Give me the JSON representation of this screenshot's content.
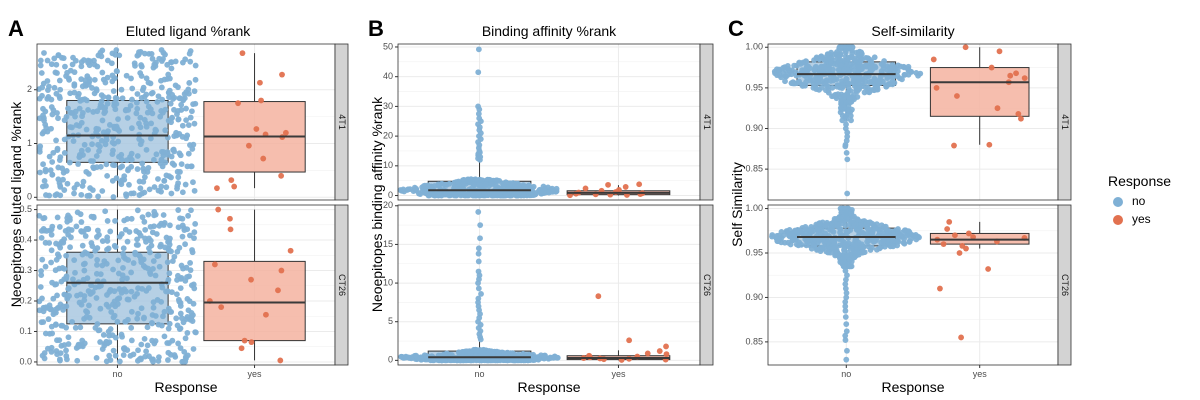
{
  "panels": [
    {
      "letter": "A",
      "title": "Eluted ligand %rank",
      "ylabel": "Neoepitopes eluted ligand %rank",
      "xlabel": "Response",
      "categories": [
        "no",
        "yes"
      ],
      "facets": [
        {
          "label": "4T1",
          "ylim": [
            -0.05,
            2.85
          ],
          "ticks": [
            0,
            1,
            2
          ],
          "boxes": [
            {
              "group": "no",
              "q1": 0.65,
              "median": 1.15,
              "q3": 1.8,
              "whisker_low": 0.0,
              "whisker_high": 2.75,
              "n_points": 500,
              "spread": "uniform"
            },
            {
              "group": "yes",
              "q1": 0.47,
              "median": 1.13,
              "q3": 1.78,
              "whisker_low": 0.17,
              "whisker_high": 2.68,
              "points": [
                2.68,
                2.28,
                2.13,
                1.8,
                1.75,
                1.27,
                1.2,
                1.17,
                1.12,
                0.96,
                0.72,
                0.4,
                0.32,
                0.2,
                0.17
              ]
            }
          ]
        },
        {
          "label": "CT26",
          "ylim": [
            -0.01,
            0.515
          ],
          "ticks": [
            0.0,
            0.1,
            0.2,
            0.3,
            0.4,
            0.5
          ],
          "tick_labels": [
            "0.0",
            "0.1",
            "0.2",
            "0.3",
            "0.4",
            "0.5"
          ],
          "boxes": [
            {
              "group": "no",
              "q1": 0.125,
              "median": 0.26,
              "q3": 0.36,
              "whisker_low": 0.0,
              "whisker_high": 0.5,
              "n_points": 500,
              "spread": "uniform"
            },
            {
              "group": "yes",
              "q1": 0.07,
              "median": 0.195,
              "q3": 0.33,
              "whisker_low": 0.005,
              "whisker_high": 0.5,
              "points": [
                0.5,
                0.47,
                0.435,
                0.365,
                0.32,
                0.3,
                0.27,
                0.235,
                0.2,
                0.18,
                0.155,
                0.07,
                0.065,
                0.045,
                0.005
              ]
            }
          ]
        }
      ]
    },
    {
      "letter": "B",
      "title": "Binding affinity %rank",
      "ylabel": "Neoepitopes binding affinity %rank",
      "xlabel": "Response",
      "categories": [
        "no",
        "yes"
      ],
      "facets": [
        {
          "label": "4T1",
          "ylim": [
            -1.5,
            51
          ],
          "ticks": [
            0,
            10,
            20,
            30,
            40,
            50
          ],
          "boxes": [
            {
              "group": "no",
              "q1": 0.5,
              "median": 1.8,
              "q3": 4.8,
              "whisker_low": 0.0,
              "whisker_high": 11.5,
              "n_points": 400,
              "spread": "skewed",
              "outliers": [
                49.2,
                41.5,
                30,
                29,
                27.5,
                26,
                25,
                24,
                23,
                22,
                21,
                20,
                19,
                18,
                17,
                16,
                15,
                14.5,
                14,
                13.5,
                13,
                12.5,
                12
              ]
            },
            {
              "group": "yes",
              "q1": 0.3,
              "median": 0.9,
              "q3": 1.6,
              "whisker_low": 0.0,
              "whisker_high": 3.5,
              "points": [
                3.8,
                3.6,
                2.9,
                2.4,
                1.9,
                1.6,
                1.2,
                1.0,
                0.8,
                0.6,
                0.5,
                0.4,
                0.3,
                0.2,
                0.1
              ]
            }
          ]
        },
        {
          "label": "CT26",
          "ylim": [
            -0.6,
            20.1
          ],
          "ticks": [
            0,
            5,
            10,
            15,
            20
          ],
          "boxes": [
            {
              "group": "no",
              "q1": 0.1,
              "median": 0.4,
              "q3": 1.2,
              "whisker_low": 0.0,
              "whisker_high": 2.5,
              "n_points": 500,
              "spread": "skewed",
              "outliers": [
                19.2,
                17.5,
                15.8,
                14.5,
                13.8,
                12.8,
                11.5,
                11,
                10.5,
                10,
                9.3,
                8.6,
                8,
                7.5,
                7,
                6.5,
                6,
                5.5,
                5,
                4.6,
                4.2,
                3.8,
                3.4,
                3.0,
                2.7
              ]
            },
            {
              "group": "yes",
              "q1": 0.1,
              "median": 0.3,
              "q3": 0.6,
              "whisker_low": 0.0,
              "whisker_high": 1.3,
              "points": [
                8.3,
                2.6,
                1.8,
                1.2,
                0.9,
                0.8,
                0.6,
                0.5,
                0.4,
                0.3,
                0.25,
                0.2,
                0.15,
                0.1,
                0.05
              ]
            }
          ]
        }
      ]
    },
    {
      "letter": "C",
      "title": "Self-similarity",
      "ylabel": "Self Similarity",
      "xlabel": "Response",
      "categories": [
        "no",
        "yes"
      ],
      "facets": [
        {
          "label": "4T1",
          "ylim": [
            0.812,
            1.004
          ],
          "ticks": [
            0.85,
            0.9,
            0.95,
            1.0
          ],
          "tick_labels": [
            "0.85",
            "0.90",
            "0.95",
            "1.00"
          ],
          "boxes": [
            {
              "group": "no",
              "q1": 0.953,
              "median": 0.967,
              "q3": 0.982,
              "whisker_low": 0.91,
              "whisker_high": 1.0,
              "n_points": 450,
              "spread": "normal",
              "outliers": [
                0.905,
                0.9,
                0.895,
                0.89,
                0.885,
                0.88,
                0.878,
                0.87,
                0.862,
                0.82
              ]
            },
            {
              "group": "yes",
              "q1": 0.915,
              "median": 0.957,
              "q3": 0.975,
              "whisker_low": 0.88,
              "whisker_high": 1.0,
              "points": [
                1.0,
                0.995,
                0.985,
                0.975,
                0.968,
                0.965,
                0.962,
                0.957,
                0.95,
                0.94,
                0.925,
                0.918,
                0.912,
                0.88,
                0.879
              ]
            }
          ]
        },
        {
          "label": "CT26",
          "ylim": [
            0.824,
            1.004
          ],
          "ticks": [
            0.85,
            0.9,
            0.95,
            1.0
          ],
          "tick_labels": [
            "0.85",
            "0.90",
            "0.95",
            "1.00"
          ],
          "boxes": [
            {
              "group": "no",
              "q1": 0.958,
              "median": 0.968,
              "q3": 0.978,
              "whisker_low": 0.935,
              "whisker_high": 1.0,
              "n_points": 500,
              "spread": "normal",
              "outliers": [
                0.93,
                0.925,
                0.92,
                0.915,
                0.91,
                0.905,
                0.9,
                0.895,
                0.89,
                0.885,
                0.878,
                0.87,
                0.862,
                0.857,
                0.852,
                0.84,
                0.83
              ]
            },
            {
              "group": "yes",
              "q1": 0.96,
              "median": 0.965,
              "q3": 0.972,
              "whisker_low": 0.955,
              "whisker_high": 0.985,
              "points": [
                0.985,
                0.977,
                0.972,
                0.97,
                0.968,
                0.967,
                0.965,
                0.963,
                0.96,
                0.958,
                0.955,
                0.95,
                0.932,
                0.91,
                0.855
              ]
            }
          ]
        }
      ]
    }
  ],
  "legend": {
    "title": "Response",
    "entries": [
      {
        "label": "no",
        "color": "#7fb0d5"
      },
      {
        "label": "yes",
        "color": "#e2714f"
      }
    ]
  },
  "colors": {
    "no_fill": "#a9c8e0",
    "yes_fill": "#f4b3a0",
    "no_point": "#7fb0d5",
    "yes_point": "#e2714f",
    "strip": "#d3d3d3",
    "grid": "#ebebeb",
    "border": "#333333"
  },
  "chart_data": [
    {
      "type": "box",
      "title": "Eluted ligand %rank",
      "xlabel": "Response",
      "ylabel": "Neoepitopes eluted ligand %rank",
      "categories": [
        "no",
        "yes"
      ],
      "facets": [
        "4T1",
        "CT26"
      ],
      "series": [
        {
          "facet": "4T1",
          "group": "no",
          "q1": 0.65,
          "median": 1.15,
          "q3": 1.8,
          "min": 0.0,
          "max": 2.75
        },
        {
          "facet": "4T1",
          "group": "yes",
          "q1": 0.47,
          "median": 1.13,
          "q3": 1.78,
          "min": 0.17,
          "max": 2.68
        },
        {
          "facet": "CT26",
          "group": "no",
          "q1": 0.125,
          "median": 0.26,
          "q3": 0.36,
          "min": 0.0,
          "max": 0.5
        },
        {
          "facet": "CT26",
          "group": "yes",
          "q1": 0.07,
          "median": 0.195,
          "q3": 0.33,
          "min": 0.005,
          "max": 0.5
        }
      ]
    },
    {
      "type": "box",
      "title": "Binding affinity %rank",
      "xlabel": "Response",
      "ylabel": "Neoepitopes binding affinity %rank",
      "categories": [
        "no",
        "yes"
      ],
      "facets": [
        "4T1",
        "CT26"
      ],
      "series": [
        {
          "facet": "4T1",
          "group": "no",
          "q1": 0.5,
          "median": 1.8,
          "q3": 4.8,
          "min": 0.0,
          "max": 49.2
        },
        {
          "facet": "4T1",
          "group": "yes",
          "q1": 0.3,
          "median": 0.9,
          "q3": 1.6,
          "min": 0.0,
          "max": 3.8
        },
        {
          "facet": "CT26",
          "group": "no",
          "q1": 0.1,
          "median": 0.4,
          "q3": 1.2,
          "min": 0.0,
          "max": 19.2
        },
        {
          "facet": "CT26",
          "group": "yes",
          "q1": 0.1,
          "median": 0.3,
          "q3": 0.6,
          "min": 0.0,
          "max": 8.3
        }
      ]
    },
    {
      "type": "box",
      "title": "Self-similarity",
      "xlabel": "Response",
      "ylabel": "Self Similarity",
      "categories": [
        "no",
        "yes"
      ],
      "facets": [
        "4T1",
        "CT26"
      ],
      "series": [
        {
          "facet": "4T1",
          "group": "no",
          "q1": 0.953,
          "median": 0.967,
          "q3": 0.982,
          "min": 0.82,
          "max": 1.0
        },
        {
          "facet": "4T1",
          "group": "yes",
          "q1": 0.915,
          "median": 0.957,
          "q3": 0.975,
          "min": 0.879,
          "max": 1.0
        },
        {
          "facet": "CT26",
          "group": "no",
          "q1": 0.958,
          "median": 0.968,
          "q3": 0.978,
          "min": 0.83,
          "max": 1.0
        },
        {
          "facet": "CT26",
          "group": "yes",
          "q1": 0.96,
          "median": 0.965,
          "q3": 0.972,
          "min": 0.855,
          "max": 0.985
        }
      ]
    }
  ]
}
